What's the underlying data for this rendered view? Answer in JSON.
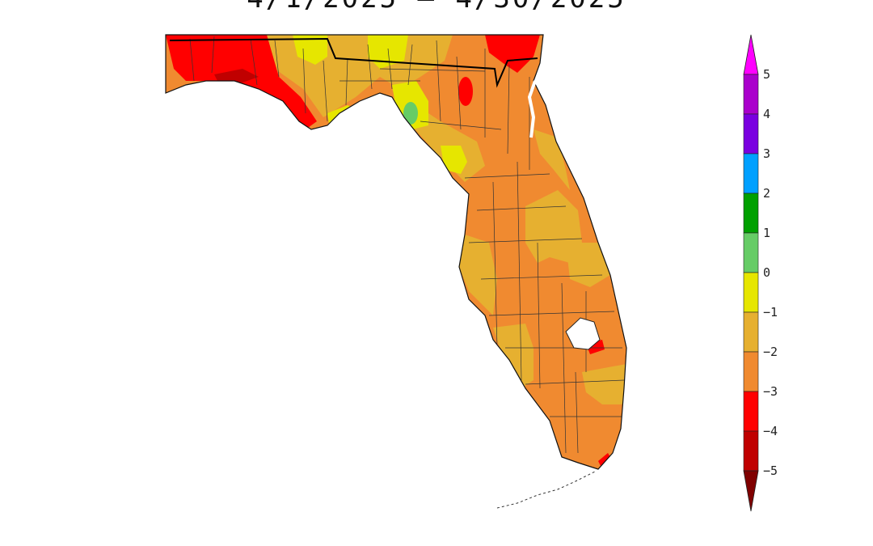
{
  "map": {
    "title": "4/1/2025 – 4/30/2025",
    "region": "Florida",
    "legend": {
      "labels": [
        "5",
        "4",
        "3",
        "2",
        "1",
        "0",
        "−1",
        "−2",
        "−3",
        "−4",
        "−5"
      ],
      "colors": {
        "gt5": "#ff00ff",
        "4to5": "#aa00cc",
        "3to4": "#7a00e0",
        "2to3": "#00a0ff",
        "1to2": "#00a000",
        "0to1": "#66cc66",
        "m1to0": "#e6e600",
        "m2tom1": "#e6b030",
        "m3tom2": "#f08a30",
        "m4tom3": "#ff0000",
        "m5tom4": "#c00000",
        "lt_m5": "#800000"
      }
    }
  }
}
